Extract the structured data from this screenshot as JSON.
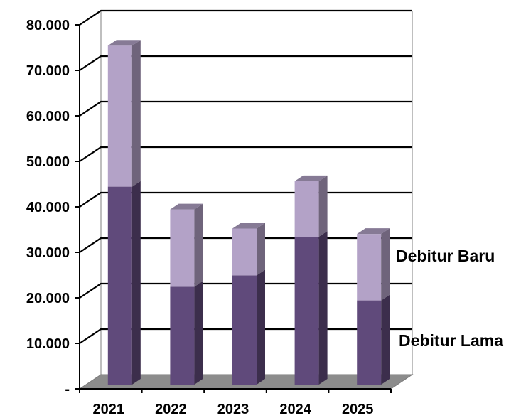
{
  "chart_data": {
    "type": "bar",
    "stacked": true,
    "three_d": true,
    "categories": [
      "2021",
      "2022",
      "2023",
      "2024",
      "2025"
    ],
    "series": [
      {
        "name": "Debitur Lama",
        "values": [
          43500,
          21500,
          24000,
          32500,
          18500
        ]
      },
      {
        "name": "Debitur Baru",
        "values": [
          31000,
          17000,
          10300,
          12200,
          14600
        ]
      }
    ],
    "ylim": [
      0,
      80000
    ],
    "yticks": [
      {
        "value": 0,
        "label": "-"
      },
      {
        "value": 10000,
        "label": "10.000"
      },
      {
        "value": 20000,
        "label": "20.000"
      },
      {
        "value": 30000,
        "label": "30.000"
      },
      {
        "value": 40000,
        "label": "40.000"
      },
      {
        "value": 50000,
        "label": "50.000"
      },
      {
        "value": 60000,
        "label": "60.000"
      },
      {
        "value": 70000,
        "label": "70.000"
      },
      {
        "value": 80000,
        "label": "80.000"
      }
    ],
    "grid": true,
    "legend": "right",
    "colors": {
      "Debitur Lama": "#604a7b",
      "Debitur Baru": "#b3a2c7",
      "floor": "#8c8c8c",
      "grid": "#000000"
    }
  }
}
